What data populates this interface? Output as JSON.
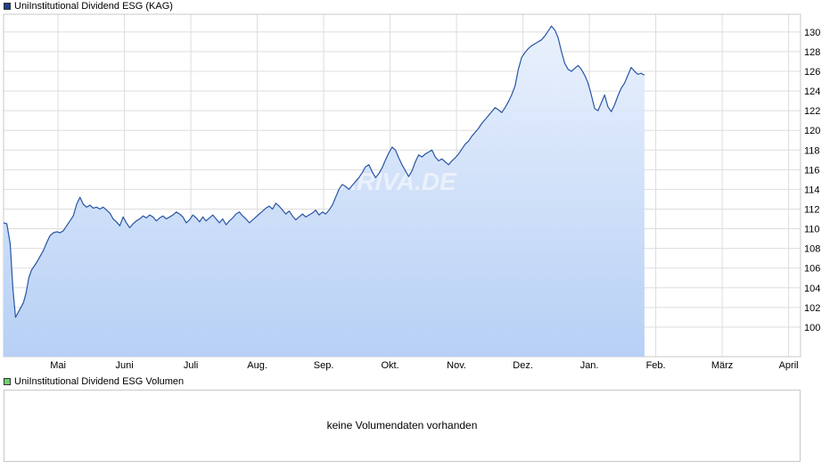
{
  "colors": {
    "price_line": "#2855a3",
    "area_top": "#eaf1fd",
    "area_bottom": "#b7d0f5",
    "grid": "#dddddd",
    "price_legend": "#1f3f8c",
    "volume_legend": "#6fd06f"
  },
  "legend": {
    "price": "UniInstitutional Dividend ESG (KAG)",
    "volume": "UniInstitutional Dividend ESG Volumen"
  },
  "watermark": "ARIVA.DE",
  "volume_panel": {
    "message": "keine Volumendaten vorhanden"
  },
  "chart_data": {
    "type": "area",
    "title": "UniInstitutional Dividend ESG (KAG)",
    "xlabel": "",
    "ylabel": "",
    "x_tick_labels": [
      "Mai",
      "Juni",
      "Juli",
      "Aug.",
      "Sep.",
      "Okt.",
      "Nov.",
      "Dez.",
      "Jan.",
      "Feb.",
      "März",
      "April"
    ],
    "y_ticks": [
      100,
      102,
      104,
      106,
      108,
      110,
      112,
      114,
      116,
      118,
      120,
      122,
      124,
      126,
      128,
      130
    ],
    "ylim": [
      97.0,
      131.8
    ],
    "grid": true,
    "legend_position": "top-left",
    "series": [
      {
        "name": "UniInstitutional Dividend ESG (KAG)",
        "x_unit": "months from start (April)",
        "points": [
          [
            0.0,
            110.6
          ],
          [
            0.05,
            110.5
          ],
          [
            0.1,
            108.5
          ],
          [
            0.14,
            104.0
          ],
          [
            0.18,
            101.0
          ],
          [
            0.22,
            101.5
          ],
          [
            0.26,
            102.0
          ],
          [
            0.3,
            102.5
          ],
          [
            0.34,
            103.5
          ],
          [
            0.38,
            105.0
          ],
          [
            0.42,
            105.8
          ],
          [
            0.46,
            106.2
          ],
          [
            0.5,
            106.6
          ],
          [
            0.55,
            107.2
          ],
          [
            0.6,
            107.8
          ],
          [
            0.65,
            108.6
          ],
          [
            0.7,
            109.3
          ],
          [
            0.75,
            109.6
          ],
          [
            0.8,
            109.7
          ],
          [
            0.85,
            109.6
          ],
          [
            0.9,
            109.8
          ],
          [
            0.95,
            110.3
          ],
          [
            1.0,
            110.8
          ],
          [
            1.05,
            111.3
          ],
          [
            1.1,
            112.5
          ],
          [
            1.15,
            113.2
          ],
          [
            1.2,
            112.5
          ],
          [
            1.25,
            112.2
          ],
          [
            1.3,
            112.4
          ],
          [
            1.35,
            112.1
          ],
          [
            1.4,
            112.2
          ],
          [
            1.45,
            112.0
          ],
          [
            1.5,
            112.2
          ],
          [
            1.55,
            111.9
          ],
          [
            1.6,
            111.6
          ],
          [
            1.65,
            111.0
          ],
          [
            1.7,
            110.7
          ],
          [
            1.75,
            110.3
          ],
          [
            1.8,
            111.2
          ],
          [
            1.85,
            110.6
          ],
          [
            1.9,
            110.1
          ],
          [
            1.95,
            110.5
          ],
          [
            2.0,
            110.8
          ],
          [
            2.05,
            111.0
          ],
          [
            2.1,
            111.3
          ],
          [
            2.15,
            111.1
          ],
          [
            2.2,
            111.4
          ],
          [
            2.25,
            111.2
          ],
          [
            2.3,
            110.8
          ],
          [
            2.35,
            111.1
          ],
          [
            2.4,
            111.3
          ],
          [
            2.45,
            111.0
          ],
          [
            2.5,
            111.2
          ],
          [
            2.55,
            111.4
          ],
          [
            2.6,
            111.7
          ],
          [
            2.65,
            111.5
          ],
          [
            2.7,
            111.2
          ],
          [
            2.75,
            110.6
          ],
          [
            2.8,
            110.9
          ],
          [
            2.85,
            111.4
          ],
          [
            2.9,
            111.1
          ],
          [
            2.95,
            110.7
          ],
          [
            3.0,
            111.2
          ],
          [
            3.05,
            110.8
          ],
          [
            3.1,
            111.1
          ],
          [
            3.15,
            111.4
          ],
          [
            3.2,
            111.0
          ],
          [
            3.25,
            110.6
          ],
          [
            3.3,
            111.0
          ],
          [
            3.35,
            110.4
          ],
          [
            3.4,
            110.8
          ],
          [
            3.45,
            111.1
          ],
          [
            3.5,
            111.5
          ],
          [
            3.55,
            111.7
          ],
          [
            3.6,
            111.3
          ],
          [
            3.65,
            111.0
          ],
          [
            3.7,
            110.6
          ],
          [
            3.75,
            110.9
          ],
          [
            3.8,
            111.2
          ],
          [
            3.85,
            111.5
          ],
          [
            3.9,
            111.8
          ],
          [
            3.95,
            112.1
          ],
          [
            4.0,
            112.3
          ],
          [
            4.05,
            112.0
          ],
          [
            4.1,
            112.6
          ],
          [
            4.15,
            112.3
          ],
          [
            4.2,
            111.9
          ],
          [
            4.25,
            111.5
          ],
          [
            4.3,
            111.8
          ],
          [
            4.35,
            111.3
          ],
          [
            4.4,
            110.9
          ],
          [
            4.45,
            111.2
          ],
          [
            4.5,
            111.5
          ],
          [
            4.55,
            111.2
          ],
          [
            4.6,
            111.4
          ],
          [
            4.65,
            111.6
          ],
          [
            4.7,
            111.9
          ],
          [
            4.75,
            111.4
          ],
          [
            4.8,
            111.7
          ],
          [
            4.85,
            111.5
          ],
          [
            4.9,
            111.9
          ],
          [
            4.95,
            112.4
          ],
          [
            5.0,
            113.2
          ],
          [
            5.05,
            114.0
          ],
          [
            5.1,
            114.5
          ],
          [
            5.15,
            114.3
          ],
          [
            5.2,
            114.0
          ],
          [
            5.25,
            114.4
          ],
          [
            5.3,
            114.8
          ],
          [
            5.35,
            115.2
          ],
          [
            5.4,
            115.7
          ],
          [
            5.45,
            116.3
          ],
          [
            5.5,
            116.5
          ],
          [
            5.55,
            115.8
          ],
          [
            5.6,
            115.2
          ],
          [
            5.65,
            115.6
          ],
          [
            5.7,
            116.2
          ],
          [
            5.75,
            117.0
          ],
          [
            5.8,
            117.7
          ],
          [
            5.85,
            118.3
          ],
          [
            5.9,
            118.0
          ],
          [
            5.95,
            117.2
          ],
          [
            6.0,
            116.5
          ],
          [
            6.05,
            115.9
          ],
          [
            6.1,
            115.3
          ],
          [
            6.15,
            115.9
          ],
          [
            6.2,
            116.8
          ],
          [
            6.25,
            117.5
          ],
          [
            6.3,
            117.3
          ],
          [
            6.35,
            117.6
          ],
          [
            6.4,
            117.8
          ],
          [
            6.45,
            118.0
          ],
          [
            6.5,
            117.3
          ],
          [
            6.55,
            116.9
          ],
          [
            6.6,
            117.1
          ],
          [
            6.65,
            116.8
          ],
          [
            6.7,
            116.5
          ],
          [
            6.75,
            116.9
          ],
          [
            6.8,
            117.2
          ],
          [
            6.85,
            117.6
          ],
          [
            6.9,
            118.1
          ],
          [
            6.95,
            118.6
          ],
          [
            7.0,
            118.9
          ],
          [
            7.05,
            119.4
          ],
          [
            7.1,
            119.8
          ],
          [
            7.15,
            120.2
          ],
          [
            7.2,
            120.7
          ],
          [
            7.25,
            121.1
          ],
          [
            7.3,
            121.5
          ],
          [
            7.35,
            121.9
          ],
          [
            7.4,
            122.3
          ],
          [
            7.45,
            122.1
          ],
          [
            7.5,
            121.8
          ],
          [
            7.55,
            122.3
          ],
          [
            7.6,
            122.9
          ],
          [
            7.65,
            123.6
          ],
          [
            7.7,
            124.5
          ],
          [
            7.75,
            126.2
          ],
          [
            7.8,
            127.4
          ],
          [
            7.85,
            127.9
          ],
          [
            7.9,
            128.3
          ],
          [
            7.95,
            128.6
          ],
          [
            8.0,
            128.8
          ],
          [
            8.05,
            129.0
          ],
          [
            8.1,
            129.2
          ],
          [
            8.15,
            129.6
          ],
          [
            8.2,
            130.1
          ],
          [
            8.25,
            130.6
          ],
          [
            8.3,
            130.2
          ],
          [
            8.35,
            129.4
          ],
          [
            8.4,
            128.0
          ],
          [
            8.45,
            126.8
          ],
          [
            8.5,
            126.2
          ],
          [
            8.55,
            126.0
          ],
          [
            8.6,
            126.3
          ],
          [
            8.65,
            126.6
          ],
          [
            8.7,
            126.2
          ],
          [
            8.75,
            125.6
          ],
          [
            8.8,
            124.8
          ],
          [
            8.85,
            123.6
          ],
          [
            8.9,
            122.2
          ],
          [
            8.95,
            122.0
          ],
          [
            9.0,
            122.8
          ],
          [
            9.05,
            123.6
          ],
          [
            9.1,
            122.4
          ],
          [
            9.15,
            121.9
          ],
          [
            9.2,
            122.6
          ],
          [
            9.25,
            123.5
          ],
          [
            9.3,
            124.3
          ],
          [
            9.35,
            124.8
          ],
          [
            9.4,
            125.6
          ],
          [
            9.45,
            126.4
          ],
          [
            9.5,
            126.0
          ],
          [
            9.55,
            125.7
          ],
          [
            9.6,
            125.8
          ],
          [
            9.65,
            125.6
          ]
        ]
      }
    ]
  }
}
